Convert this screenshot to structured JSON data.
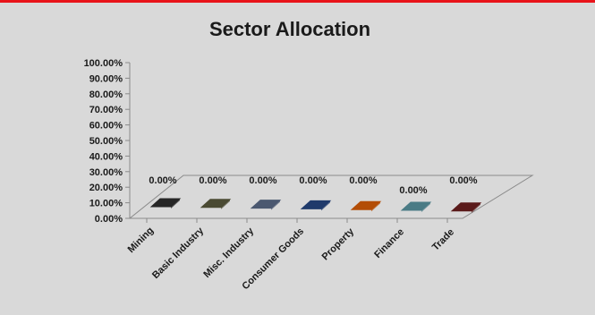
{
  "colors": {
    "background": "#d9d9d9",
    "top_bar": "#e8141a",
    "axis": "#8a8a8a"
  },
  "chart_data": {
    "type": "bar",
    "title": "Sector Allocation",
    "categories": [
      "Mining",
      "Basic Industry",
      "Misc. Industry",
      "Consumer Goods",
      "Property",
      "Finance",
      "Trade"
    ],
    "values": [
      0,
      0,
      0,
      0,
      0,
      0,
      0
    ],
    "data_labels": [
      "0.00%",
      "0.00%",
      "0.00%",
      "0.00%",
      "0.00%",
      "0.00%",
      "0.00%"
    ],
    "y_ticks": [
      "0.00%",
      "10.00%",
      "20.00%",
      "30.00%",
      "40.00%",
      "50.00%",
      "60.00%",
      "70.00%",
      "80.00%",
      "90.00%",
      "100.00%"
    ],
    "ylim": [
      0,
      100
    ],
    "bar_colors": [
      "#262626",
      "#4a4a33",
      "#4b5870",
      "#1f3a6b",
      "#b34d06",
      "#4a7b85",
      "#5a1a1a"
    ],
    "style": "3d-column",
    "grid": false,
    "legend": "none",
    "xlabel": "",
    "ylabel": ""
  }
}
